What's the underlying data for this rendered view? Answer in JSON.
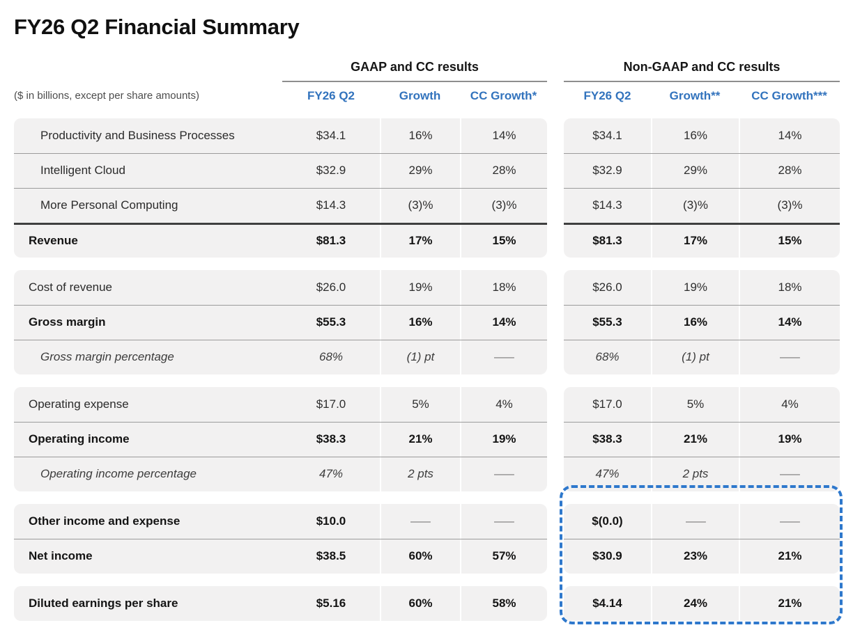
{
  "title": "FY26 Q2 Financial Summary",
  "note": "($ in billions, except per share amounts)",
  "groups": {
    "gaap": {
      "title": "GAAP and CC results",
      "columns": [
        "FY26 Q2",
        "Growth",
        "CC Growth*"
      ]
    },
    "non_gaap": {
      "title": "Non-GAAP and CC results",
      "columns": [
        "FY26 Q2",
        "Growth**",
        "CC Growth***"
      ]
    }
  },
  "colors": {
    "accent_blue": "#3273BD",
    "highlight_dash_blue": "#2E78CC",
    "row_background": "#F2F1F1",
    "thick_rule": "#3F3F3F",
    "thin_rule": "#9B9B9B"
  },
  "blocks": [
    {
      "rows": [
        {
          "label": "Productivity and Business Processes",
          "gaap": [
            "$34.1",
            "16%",
            "14%"
          ],
          "nongaap": [
            "$34.1",
            "16%",
            "14%"
          ]
        },
        {
          "label": "Intelligent Cloud",
          "gaap": [
            "$32.9",
            "29%",
            "28%"
          ],
          "nongaap": [
            "$32.9",
            "29%",
            "28%"
          ]
        },
        {
          "label": "More Personal Computing",
          "gaap": [
            "$14.3",
            "(3)%",
            "(3)%"
          ],
          "nongaap": [
            "$14.3",
            "(3)%",
            "(3)%"
          ]
        },
        {
          "label": "Revenue",
          "gaap": [
            "$81.3",
            "17%",
            "15%"
          ],
          "nongaap": [
            "$81.3",
            "17%",
            "15%"
          ]
        }
      ]
    },
    {
      "rows": [
        {
          "label": "Cost of revenue",
          "gaap": [
            "$26.0",
            "19%",
            "18%"
          ],
          "nongaap": [
            "$26.0",
            "19%",
            "18%"
          ]
        },
        {
          "label": "Gross margin",
          "gaap": [
            "$55.3",
            "16%",
            "14%"
          ],
          "nongaap": [
            "$55.3",
            "16%",
            "14%"
          ]
        },
        {
          "label": "Gross margin percentage",
          "gaap": [
            "68%",
            "(1) pt",
            "—"
          ],
          "nongaap": [
            "68%",
            "(1) pt",
            "—"
          ]
        }
      ]
    },
    {
      "rows": [
        {
          "label": "Operating expense",
          "gaap": [
            "$17.0",
            "5%",
            "4%"
          ],
          "nongaap": [
            "$17.0",
            "5%",
            "4%"
          ]
        },
        {
          "label": "Operating income",
          "gaap": [
            "$38.3",
            "21%",
            "19%"
          ],
          "nongaap": [
            "$38.3",
            "21%",
            "19%"
          ]
        },
        {
          "label": "Operating income percentage",
          "gaap": [
            "47%",
            "2 pts",
            "—"
          ],
          "nongaap": [
            "47%",
            "2 pts",
            "—"
          ]
        }
      ]
    },
    {
      "rows": [
        {
          "label": "Other income and expense",
          "gaap": [
            "$10.0",
            "—",
            "—"
          ],
          "nongaap": [
            "$(0.0)",
            "—",
            "—"
          ]
        },
        {
          "label": "Net income",
          "gaap": [
            "$38.5",
            "60%",
            "57%"
          ],
          "nongaap": [
            "$30.9",
            "23%",
            "21%"
          ]
        }
      ]
    },
    {
      "rows": [
        {
          "label": "Diluted earnings per share",
          "gaap": [
            "$5.16",
            "60%",
            "58%"
          ],
          "nongaap": [
            "$4.14",
            "24%",
            "21%"
          ]
        }
      ]
    }
  ]
}
